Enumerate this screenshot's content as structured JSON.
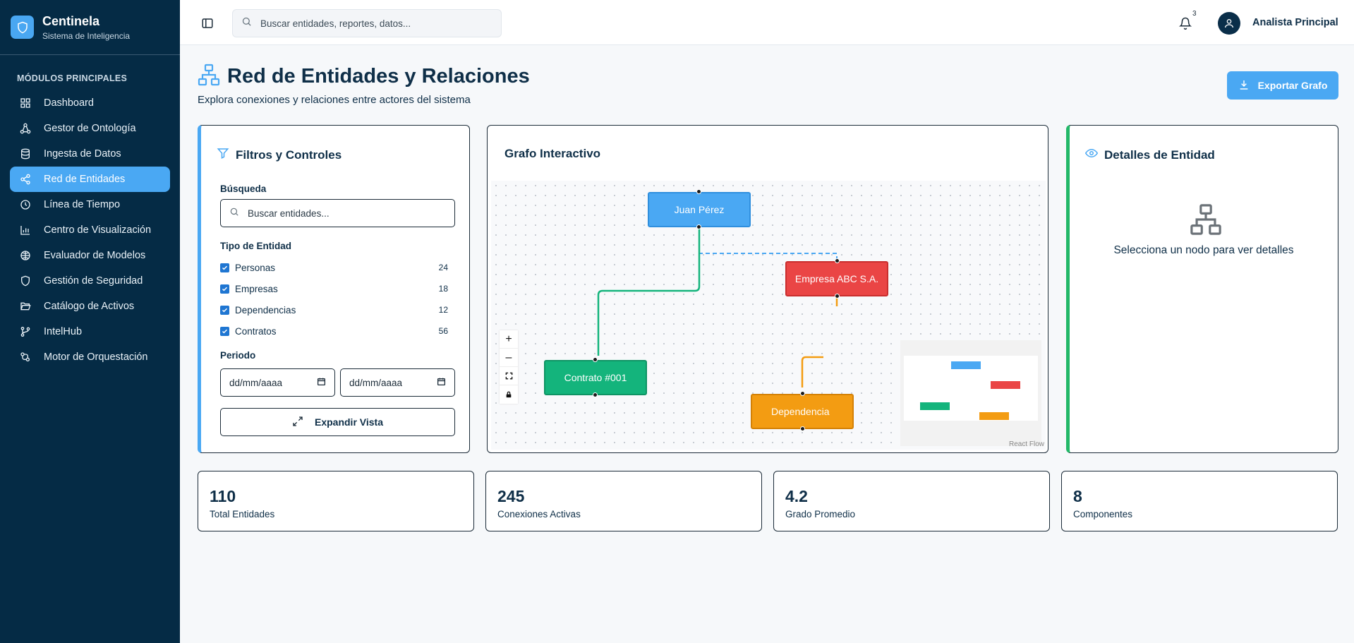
{
  "brand": {
    "name": "Centinela",
    "subtitle": "Sistema de Inteligencia"
  },
  "sidebar": {
    "section_title": "MÓDULOS PRINCIPALES",
    "items": [
      {
        "label": "Dashboard",
        "icon": "dashboard-icon"
      },
      {
        "label": "Gestor de Ontología",
        "icon": "ontology-icon"
      },
      {
        "label": "Ingesta de Datos",
        "icon": "database-icon"
      },
      {
        "label": "Red de Entidades",
        "icon": "share-network-icon",
        "active": true
      },
      {
        "label": "Línea de Tiempo",
        "icon": "clock-icon"
      },
      {
        "label": "Centro de Visualización",
        "icon": "bar-chart-icon"
      },
      {
        "label": "Evaluador de Modelos",
        "icon": "brain-icon"
      },
      {
        "label": "Gestión de Seguridad",
        "icon": "shield-icon"
      },
      {
        "label": "Catálogo de Activos",
        "icon": "folder-open-icon"
      },
      {
        "label": "IntelHub",
        "icon": "git-branch-icon"
      },
      {
        "label": "Motor de Orquestación",
        "icon": "workflow-icon"
      }
    ]
  },
  "header": {
    "search_placeholder": "Buscar entidades, reportes, datos...",
    "notification_count": "3",
    "user_name": "Analista Principal"
  },
  "page": {
    "title": "Red de Entidades y Relaciones",
    "subtitle": "Explora conexiones y relaciones entre actores del sistema",
    "export_label": "Exportar Grafo"
  },
  "filters": {
    "title": "Filtros y Controles",
    "search_label": "Búsqueda",
    "search_placeholder": "Buscar entidades...",
    "type_label": "Tipo de Entidad",
    "types": [
      {
        "label": "Personas",
        "count": "24",
        "checked": true
      },
      {
        "label": "Empresas",
        "count": "18",
        "checked": true
      },
      {
        "label": "Dependencias",
        "count": "12",
        "checked": true
      },
      {
        "label": "Contratos",
        "count": "56",
        "checked": true
      }
    ],
    "period_label": "Periodo",
    "date_from": "dd/mm/aaaa",
    "date_to": "dd/mm/aaaa",
    "expand_label": "Expandir Vista"
  },
  "graph": {
    "title": "Grafo Interactivo",
    "nodes": [
      {
        "label": "Juan Pérez",
        "color": "#4aa8f3"
      },
      {
        "label": "Empresa ABC S.A.",
        "color": "#ea4545"
      },
      {
        "label": "Contrato #001",
        "color": "#14b47c"
      },
      {
        "label": "Dependencia",
        "color": "#f39c12"
      }
    ],
    "controls": [
      "zoom-in-icon",
      "zoom-out-icon",
      "fit-view-icon",
      "lock-icon"
    ],
    "attribution": "React Flow"
  },
  "details": {
    "title": "Detalles de Entidad",
    "empty_text": "Selecciona un nodo para ver detalles"
  },
  "stats": [
    {
      "value": "110",
      "label": "Total Entidades"
    },
    {
      "value": "245",
      "label": "Conexiones Activas"
    },
    {
      "value": "4.2",
      "label": "Grado Promedio"
    },
    {
      "value": "8",
      "label": "Componentes"
    }
  ]
}
